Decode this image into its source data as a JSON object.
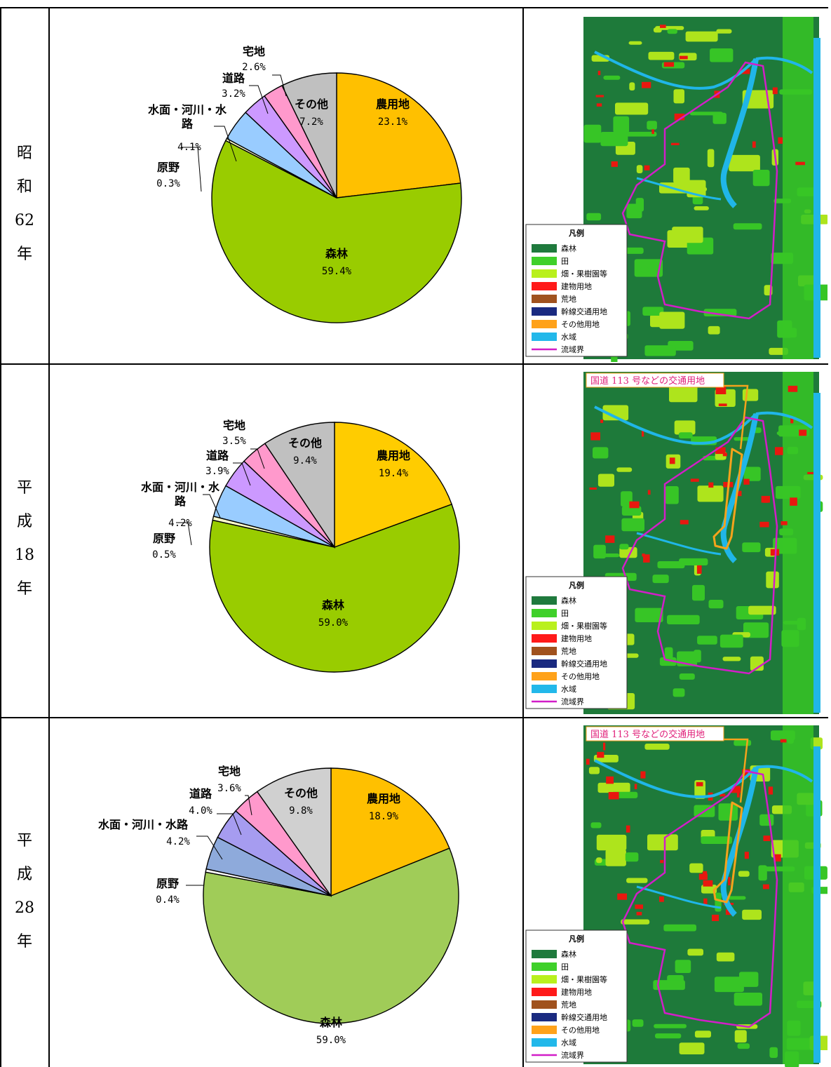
{
  "rows": [
    {
      "year_chars": [
        "昭",
        "和",
        "62",
        "年"
      ],
      "road_annotation": "",
      "legend": {
        "title": "凡例",
        "items": [
          {
            "label": "森林",
            "color": "#1f7a3d"
          },
          {
            "label": "田",
            "color": "#3fd02a"
          },
          {
            "label": "畑・果樹園等",
            "color": "#b9f01d"
          },
          {
            "label": "建物用地",
            "color": "#ff1a1a"
          },
          {
            "label": "荒地",
            "color": "#a0521e"
          },
          {
            "label": "幹線交通用地",
            "color": "#1a2a80"
          },
          {
            "label": "その他用地",
            "color": "#ffa21a"
          },
          {
            "label": "水域",
            "color": "#22b8ea"
          },
          {
            "label": "流域界",
            "color": "#d21ec8",
            "line": true
          }
        ]
      },
      "map_palette": {
        "forest": "#1e7a3a",
        "paddy": "#37c526",
        "field": "#aee41c",
        "building": "#e8180f",
        "water": "#20b6e8",
        "boundary": "#d21ec8",
        "road": "#f5a31c"
      }
    },
    {
      "year_chars": [
        "平",
        "成",
        "18",
        "年"
      ],
      "road_annotation": "国道 113 号などの交通用地",
      "legend": {
        "title": "凡例",
        "items": [
          {
            "label": "森林",
            "color": "#1f7a3d"
          },
          {
            "label": "田",
            "color": "#3fd02a"
          },
          {
            "label": "畑・果樹園等",
            "color": "#b9f01d"
          },
          {
            "label": "建物用地",
            "color": "#ff1a1a"
          },
          {
            "label": "荒地",
            "color": "#a0521e"
          },
          {
            "label": "幹線交通用地",
            "color": "#1a2a80"
          },
          {
            "label": "その他用地",
            "color": "#ffa21a"
          },
          {
            "label": "水域",
            "color": "#22b8ea"
          },
          {
            "label": "流域界",
            "color": "#d21ec8",
            "line": true
          }
        ]
      },
      "map_palette": {
        "forest": "#1e7a3a",
        "paddy": "#37c526",
        "field": "#aee41c",
        "building": "#e8180f",
        "water": "#20b6e8",
        "boundary": "#d21ec8",
        "road": "#f5a31c"
      }
    },
    {
      "year_chars": [
        "平",
        "成",
        "28",
        "年"
      ],
      "road_annotation": "国道 113 号などの交通用地",
      "legend": {
        "title": "凡例",
        "items": [
          {
            "label": "森林",
            "color": "#1f7a3d"
          },
          {
            "label": "田",
            "color": "#3fd02a"
          },
          {
            "label": "畑・果樹園等",
            "color": "#b9f01d"
          },
          {
            "label": "建物用地",
            "color": "#ff1a1a"
          },
          {
            "label": "荒地",
            "color": "#a0521e"
          },
          {
            "label": "幹線交通用地",
            "color": "#1a2a80"
          },
          {
            "label": "その他用地",
            "color": "#ffa21a"
          },
          {
            "label": "水域",
            "color": "#22b8ea"
          },
          {
            "label": "流域界",
            "color": "#d21ec8",
            "line": true
          }
        ]
      },
      "map_palette": {
        "forest": "#1e7a3a",
        "paddy": "#37c526",
        "field": "#aee41c",
        "building": "#e8180f",
        "water": "#20b6e8",
        "boundary": "#d21ec8",
        "road": "#f5a31c"
      }
    }
  ],
  "chart_data": [
    {
      "type": "pie",
      "title": "",
      "slices": [
        {
          "label": "農用地",
          "value_text": "23.1%",
          "value": 23.1,
          "color": "#ffc000"
        },
        {
          "label": "森林",
          "value_text": "59.4%",
          "value": 59.4,
          "color": "#99cc00"
        },
        {
          "label": "原野",
          "value_text": "0.3%",
          "value": 0.3,
          "color": "#ffffcc"
        },
        {
          "label": "水面・河川・水路",
          "value_text": "4.1%",
          "value": 4.1,
          "color": "#99ccff"
        },
        {
          "label": "道路",
          "value_text": "3.2%",
          "value": 3.2,
          "color": "#cc99ff"
        },
        {
          "label": "宅地",
          "value_text": "2.6%",
          "value": 2.6,
          "color": "#ff99cc"
        },
        {
          "label": "その他",
          "value_text": "7.2%",
          "value": 7.2,
          "color": "#c0c0c0"
        }
      ]
    },
    {
      "type": "pie",
      "title": "",
      "slices": [
        {
          "label": "農用地",
          "value_text": "19.4%",
          "value": 19.4,
          "color": "#ffcc00"
        },
        {
          "label": "森林",
          "value_text": "59.0%",
          "value": 59.0,
          "color": "#99cc00"
        },
        {
          "label": "原野",
          "value_text": "0.5%",
          "value": 0.5,
          "color": "#ffffcc"
        },
        {
          "label": "水面・河川・水路",
          "value_text": "4.2%",
          "value": 4.2,
          "color": "#99ccff"
        },
        {
          "label": "道路",
          "value_text": "3.9%",
          "value": 3.9,
          "color": "#cc99ff"
        },
        {
          "label": "宅地",
          "value_text": "3.5%",
          "value": 3.5,
          "color": "#ff99cc"
        },
        {
          "label": "その他",
          "value_text": "9.4%",
          "value": 9.4,
          "color": "#c0c0c0"
        }
      ]
    },
    {
      "type": "pie",
      "title": "",
      "slices": [
        {
          "label": "農用地",
          "value_text": "18.9%",
          "value": 18.9,
          "color": "#ffc000"
        },
        {
          "label": "森林",
          "value_text": "59.0%",
          "value": 59.0,
          "color": "#a0cc58"
        },
        {
          "label": "原野",
          "value_text": "0.4%",
          "value": 0.4,
          "color": "#ffffff"
        },
        {
          "label": "水面・河川・水路",
          "value_text": "4.2%",
          "value": 4.2,
          "color": "#8eaadb"
        },
        {
          "label": "道路",
          "value_text": "4.0%",
          "value": 4.0,
          "color": "#a69cf0"
        },
        {
          "label": "宅地",
          "value_text": "3.6%",
          "value": 3.6,
          "color": "#ff99cc"
        },
        {
          "label": "その他",
          "value_text": "9.8%",
          "value": 9.8,
          "color": "#d0d0d0"
        }
      ]
    }
  ]
}
